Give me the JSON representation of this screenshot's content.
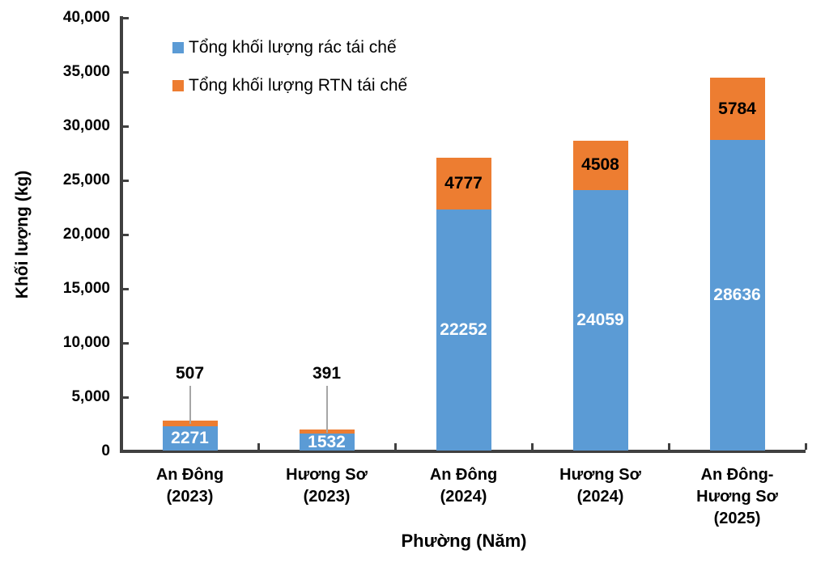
{
  "chart_data": {
    "type": "bar",
    "stacked": true,
    "title": "",
    "xlabel": "Phường (Năm)",
    "ylabel": "Khối lượng (kg)",
    "ylim": [
      0,
      40000
    ],
    "ytick_step": 5000,
    "yticks": [
      "0",
      "5,000",
      "10,000",
      "15,000",
      "20,000",
      "25,000",
      "30,000",
      "35,000",
      "40,000"
    ],
    "categories": [
      "An Đông\n(2023)",
      "Hương Sơ\n(2023)",
      "An Đông\n(2024)",
      "Hương Sơ\n(2024)",
      "An Đông-\nHương Sơ\n(2025)"
    ],
    "series": [
      {
        "name": "Tổng khối lượng rác tái chế",
        "color": "#5B9BD5",
        "label_color": "#FFFFFF",
        "values": [
          2271,
          1532,
          22252,
          24059,
          28636
        ]
      },
      {
        "name": "Tổng khối lượng RTN tái chế",
        "color": "#ED7D31",
        "label_color": "#000000",
        "values": [
          507,
          391,
          4777,
          4508,
          5784
        ],
        "outside_labels": [
          true,
          true,
          false,
          false,
          false
        ]
      }
    ],
    "legend_position": "top-left",
    "grid": false,
    "axis_color": "#404040",
    "leader_line_color": "#A6A6A6"
  }
}
